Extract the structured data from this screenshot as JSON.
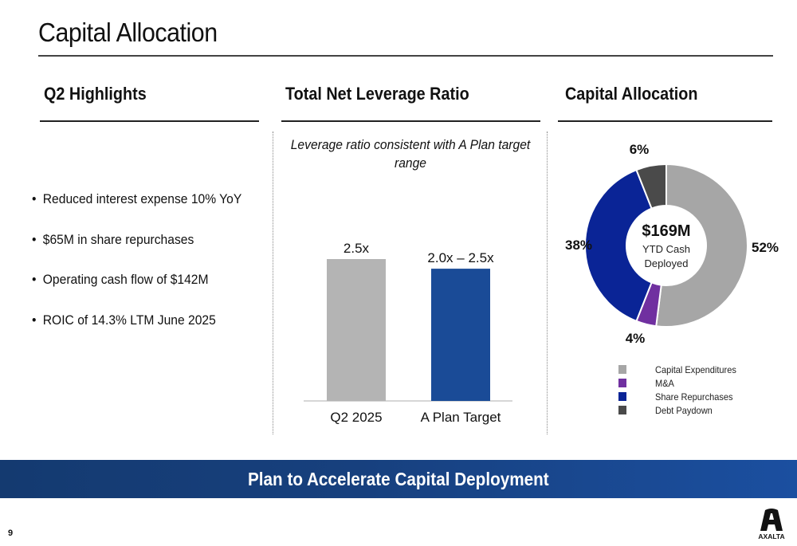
{
  "page": {
    "title": "Capital Allocation",
    "page_number": "9",
    "banner": "Plan to Accelerate Capital Deployment",
    "logo_text": "AXALTA"
  },
  "sections": {
    "highlights": {
      "title": "Q2 Highlights",
      "bullets": [
        "Reduced interest expense 10% YoY",
        "$65M in share repurchases",
        "Operating cash flow of $142M",
        "ROIC of 14.3% LTM June 2025"
      ]
    },
    "leverage": {
      "title": "Total Net Leverage Ratio",
      "subtitle": "Leverage ratio consistent with A Plan target range"
    },
    "allocation": {
      "title": "Capital Allocation",
      "center_value": "$169M",
      "center_label_1": "YTD Cash",
      "center_label_2": "Deployed"
    }
  },
  "chart_data": [
    {
      "type": "bar",
      "title": "Total Net Leverage Ratio",
      "categories": [
        "Q2 2025",
        "A Plan Target"
      ],
      "values": [
        2.5,
        2.33
      ],
      "data_labels": [
        "2.5x",
        "2.0x – 2.5x"
      ],
      "colors": [
        "#b4b4b4",
        "#1a4b97"
      ],
      "xlabel": "",
      "ylabel": "",
      "ylim": [
        0,
        2.5
      ],
      "grid": false
    },
    {
      "type": "pie",
      "title": "Capital Allocation",
      "donut": true,
      "categories": [
        "Capital Expenditures",
        "M&A",
        "Share Repurchases",
        "Debt Paydown"
      ],
      "values": [
        52,
        4,
        38,
        6
      ],
      "data_labels": [
        "52%",
        "4%",
        "38%",
        "6%"
      ],
      "colors": [
        "#a6a6a6",
        "#7030a0",
        "#0a2496",
        "#4a4a4a"
      ],
      "legend": "bottom"
    }
  ]
}
